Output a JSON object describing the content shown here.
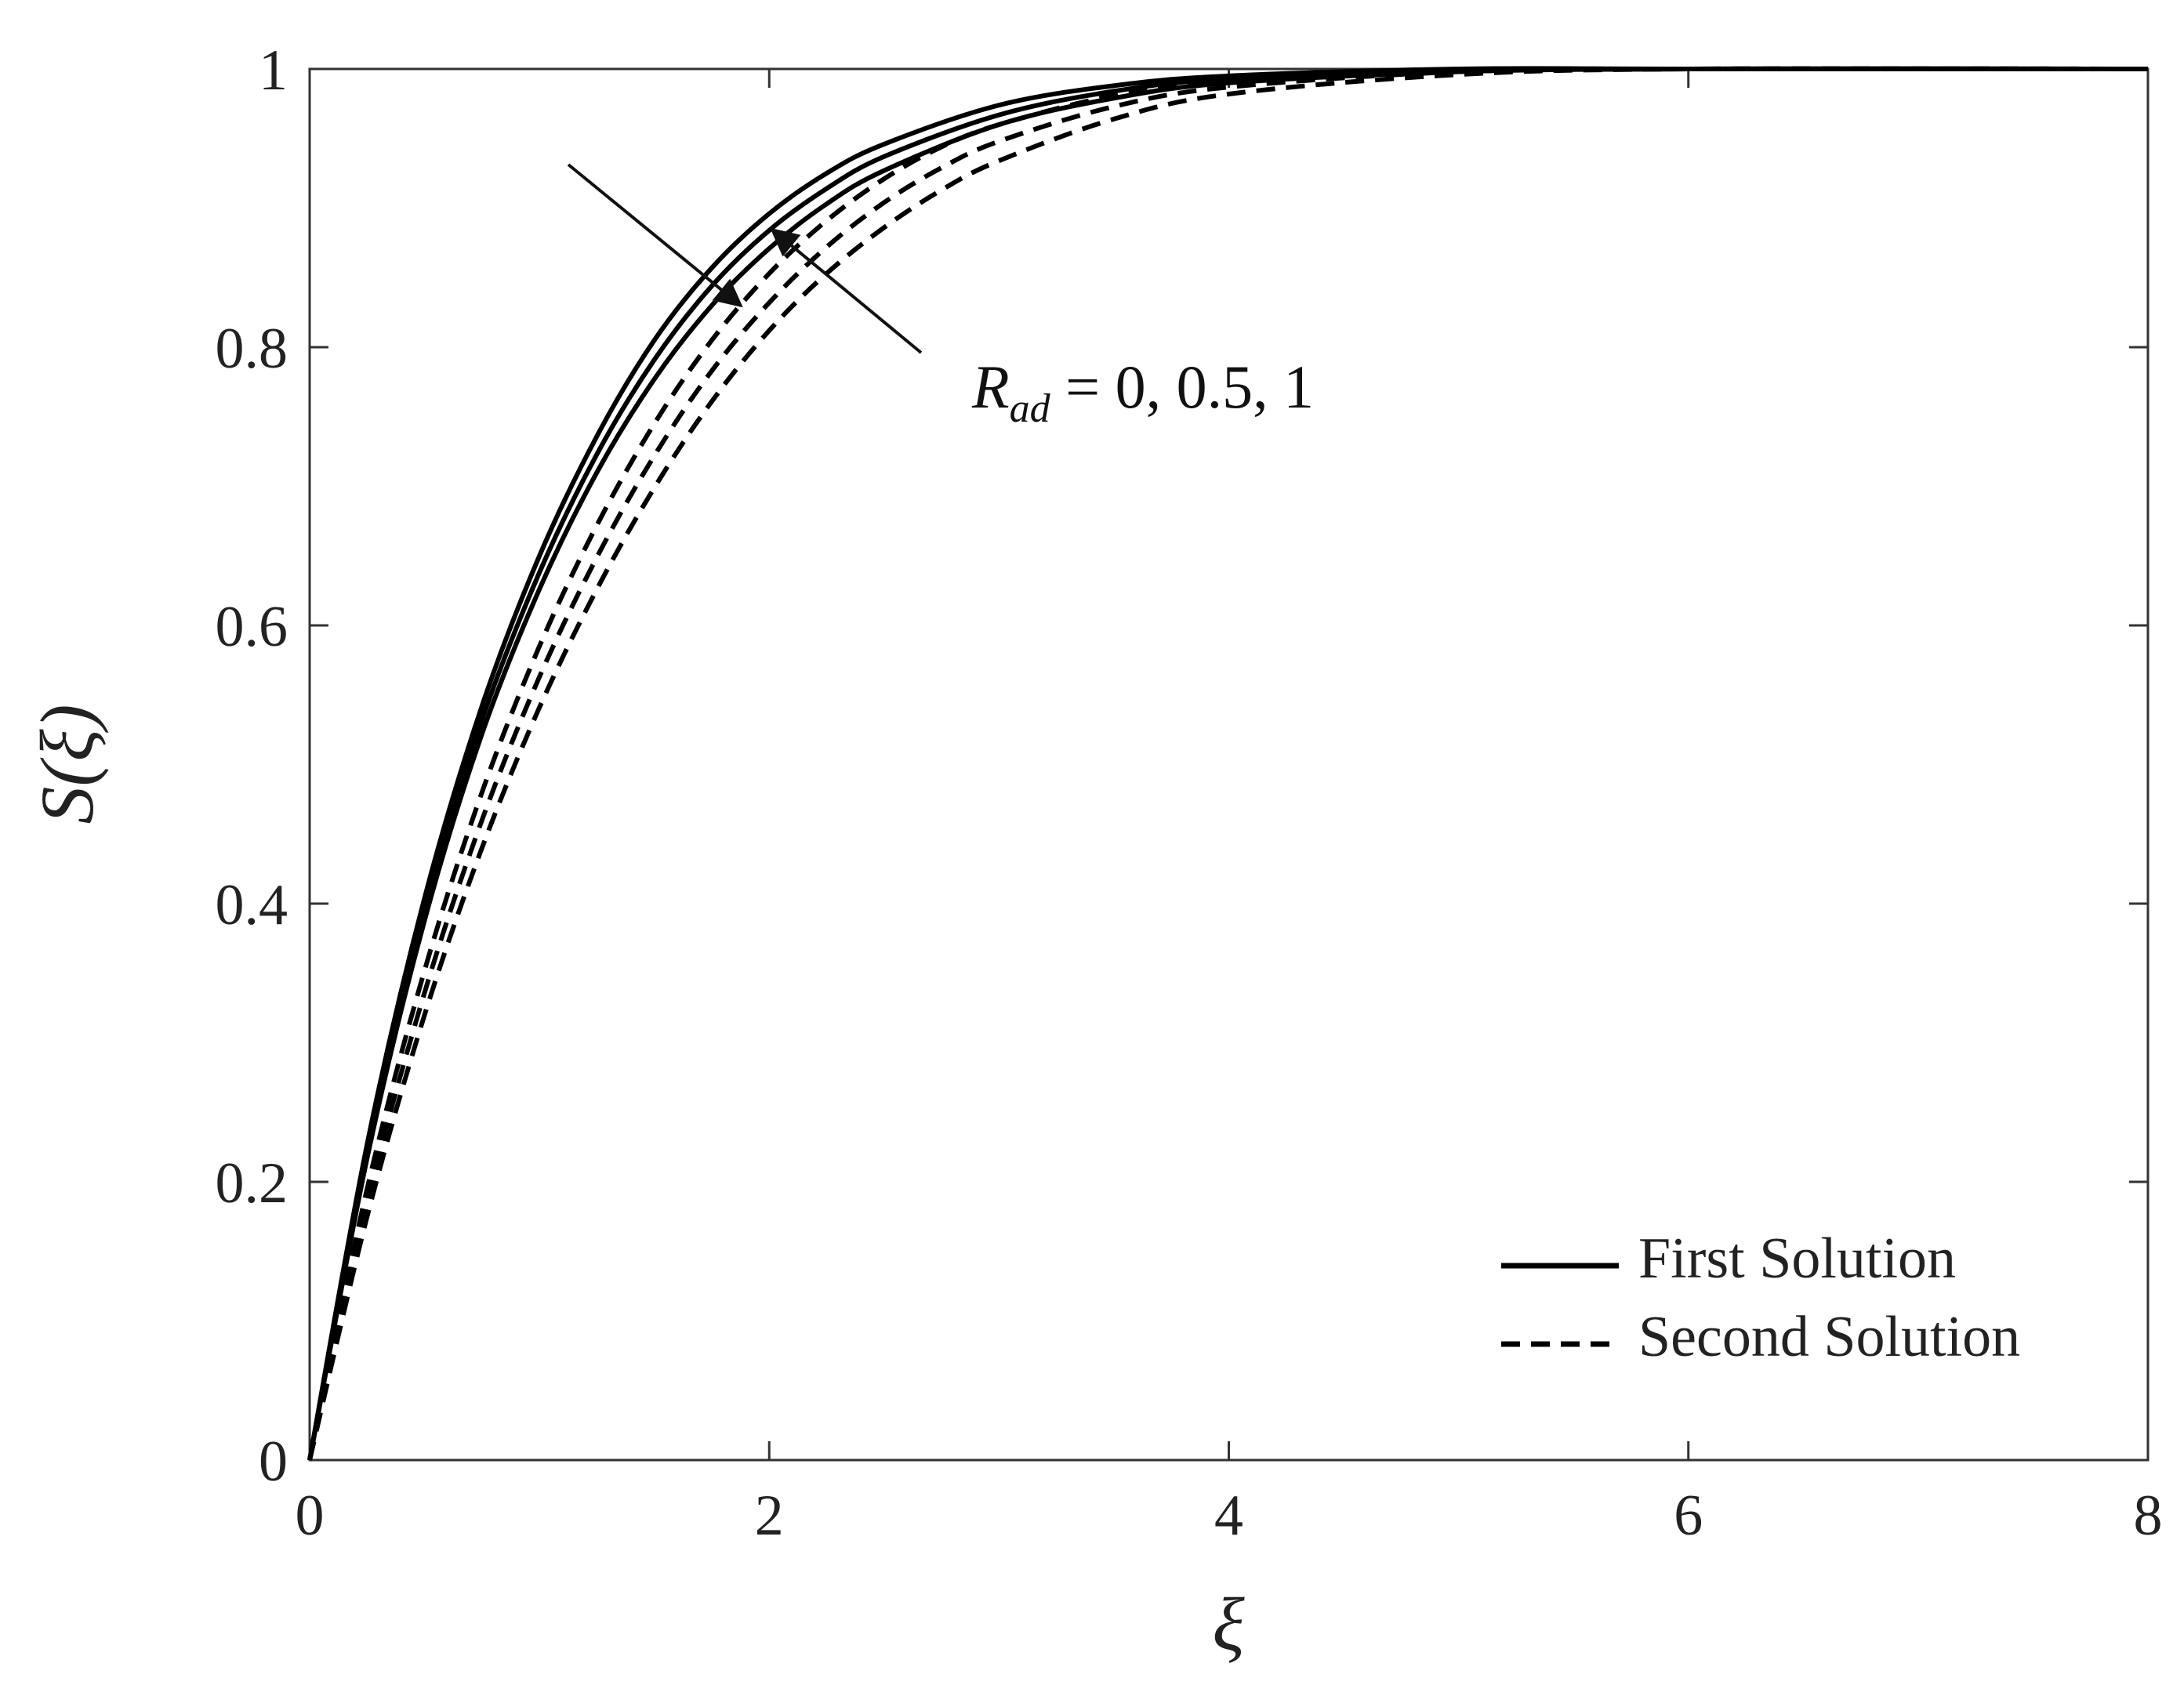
{
  "chart_data": {
    "type": "line",
    "xlabel": "ξ",
    "ylabel": "S(ξ)",
    "xlim": [
      0,
      8
    ],
    "ylim": [
      0,
      1
    ],
    "xticks": [
      "0",
      "2",
      "4",
      "6",
      "8"
    ],
    "yticks": [
      "0",
      "0.2",
      "0.4",
      "0.6",
      "0.8",
      "1"
    ],
    "grid": false,
    "legend_position": "bottom-right",
    "legend": [
      {
        "label": "First Solution",
        "style": "solid"
      },
      {
        "label": "Second Solution",
        "style": "dashed"
      }
    ],
    "annotation": {
      "symbol": "R",
      "subscript": "ad",
      "text": " = 0, 0.5, 1"
    },
    "series": [
      {
        "solution": "First Solution",
        "param": 0,
        "style": "solid",
        "x": [
          0,
          0.25,
          0.5,
          0.75,
          1,
          1.25,
          1.5,
          1.75,
          2,
          2.25,
          2.5,
          3,
          3.5,
          4,
          5,
          6,
          8
        ],
        "y": [
          0,
          0.227,
          0.404,
          0.542,
          0.65,
          0.736,
          0.805,
          0.857,
          0.896,
          0.925,
          0.946,
          0.974,
          0.988,
          0.995,
          1,
          1,
          1
        ]
      },
      {
        "solution": "First Solution",
        "param": 0.5,
        "style": "solid",
        "x": [
          0,
          0.25,
          0.5,
          0.75,
          1,
          1.25,
          1.5,
          1.75,
          2,
          2.25,
          2.5,
          3,
          3.5,
          4,
          5,
          6,
          8
        ],
        "y": [
          0,
          0.222,
          0.396,
          0.532,
          0.638,
          0.723,
          0.791,
          0.844,
          0.884,
          0.914,
          0.937,
          0.967,
          0.984,
          0.993,
          0.999,
          1,
          1
        ]
      },
      {
        "solution": "First Solution",
        "param": 1,
        "style": "solid",
        "x": [
          0,
          0.25,
          0.5,
          0.75,
          1,
          1.25,
          1.5,
          1.75,
          2,
          2.25,
          2.5,
          3,
          3.5,
          4,
          5,
          6,
          8
        ],
        "y": [
          0,
          0.217,
          0.388,
          0.522,
          0.626,
          0.71,
          0.777,
          0.83,
          0.871,
          0.903,
          0.927,
          0.96,
          0.979,
          0.99,
          0.998,
          1,
          1
        ]
      },
      {
        "solution": "Second Solution",
        "param": 0,
        "style": "dashed",
        "x": [
          0,
          0.25,
          0.5,
          0.75,
          1,
          1.25,
          1.5,
          1.75,
          2,
          2.25,
          2.5,
          2.75,
          3,
          3.5,
          4,
          5,
          6,
          8
        ],
        "y": [
          0,
          0.195,
          0.352,
          0.48,
          0.585,
          0.672,
          0.745,
          0.805,
          0.853,
          0.891,
          0.921,
          0.944,
          0.96,
          0.981,
          0.992,
          0.999,
          1,
          1
        ]
      },
      {
        "solution": "Second Solution",
        "param": 0.5,
        "style": "dashed",
        "x": [
          0,
          0.25,
          0.5,
          0.75,
          1,
          1.25,
          1.5,
          1.75,
          2,
          2.25,
          2.5,
          2.75,
          3,
          3.5,
          4,
          5,
          6,
          8
        ],
        "y": [
          0,
          0.185,
          0.336,
          0.46,
          0.563,
          0.649,
          0.722,
          0.783,
          0.832,
          0.872,
          0.904,
          0.929,
          0.948,
          0.973,
          0.987,
          0.998,
          1,
          1
        ]
      },
      {
        "solution": "Second Solution",
        "param": 1,
        "style": "dashed",
        "x": [
          0,
          0.25,
          0.5,
          0.75,
          1,
          1.25,
          1.5,
          1.75,
          2,
          2.25,
          2.5,
          2.75,
          3,
          3.5,
          4,
          5,
          6,
          8
        ],
        "y": [
          0,
          0.175,
          0.32,
          0.44,
          0.541,
          0.626,
          0.699,
          0.761,
          0.812,
          0.853,
          0.886,
          0.913,
          0.934,
          0.964,
          0.982,
          0.996,
          1,
          1
        ]
      }
    ]
  }
}
